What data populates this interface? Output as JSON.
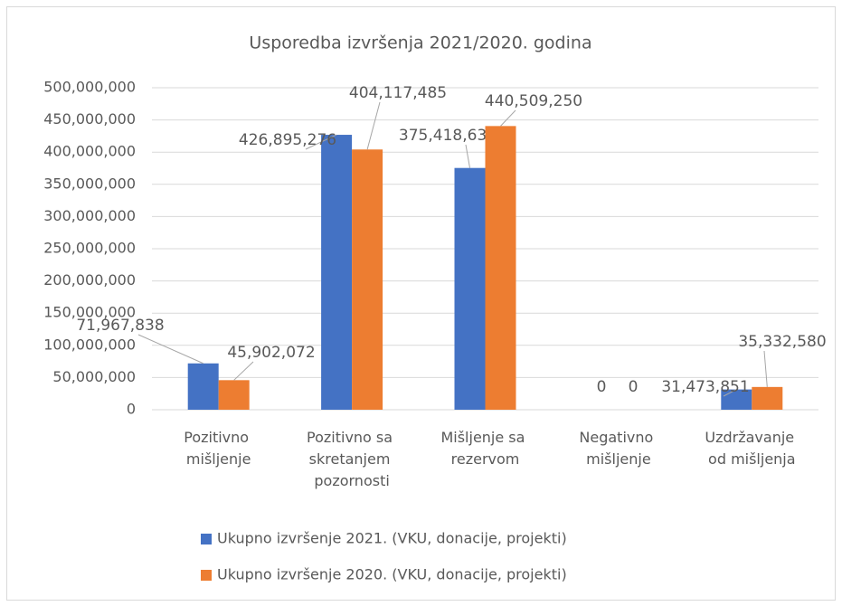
{
  "chart_data": {
    "type": "bar",
    "title": "Usporedba izvršenja 2021/2020. godina",
    "categories": [
      "Pozitivno mišljenje",
      "Pozitivno sa skretanjem pozornosti",
      "Mišljenje sa rezervom",
      "Negativno mišljenje",
      "Uzdržavanje od mišljenja"
    ],
    "series": [
      {
        "name": "Ukupno izvršenje 2021. (VKU, donacije, projekti)",
        "color": "#4472c4",
        "values": [
          71967838,
          426895276,
          375418635,
          0,
          31473851
        ],
        "value_labels": [
          "71,967,838",
          "426,895,276",
          "375,418,635",
          "0",
          "31,473,851"
        ]
      },
      {
        "name": "Ukupno izvršenje 2020. (VKU, donacije, projekti)",
        "color": "#ed7d31",
        "values": [
          45902072,
          404117485,
          440509250,
          0,
          35332580
        ],
        "value_labels": [
          "45,902,072",
          "404,117,485",
          "440,509,250",
          "0",
          "35,332,580"
        ]
      }
    ],
    "ylim": [
      0,
      500000000
    ],
    "yticks": [
      0,
      {
        "value": 50000000,
        "label": "50,000,000"
      },
      {
        "value": 100000000,
        "label": "100,000,000"
      },
      {
        "value": 150000000,
        "label": "150,000,000"
      },
      {
        "value": 200000000,
        "label": "200,000,000"
      },
      {
        "value": 250000000,
        "label": "250,000,000"
      },
      {
        "value": 300000000,
        "label": "300,000,000"
      },
      {
        "value": 350000000,
        "label": "350,000,000"
      },
      {
        "value": 400000000,
        "label": "400,000,000"
      },
      {
        "value": 450000000,
        "label": "450,000,000"
      },
      {
        "value": 500000000,
        "label": "500,000,000"
      }
    ],
    "grid": true,
    "legend": "bottom"
  }
}
